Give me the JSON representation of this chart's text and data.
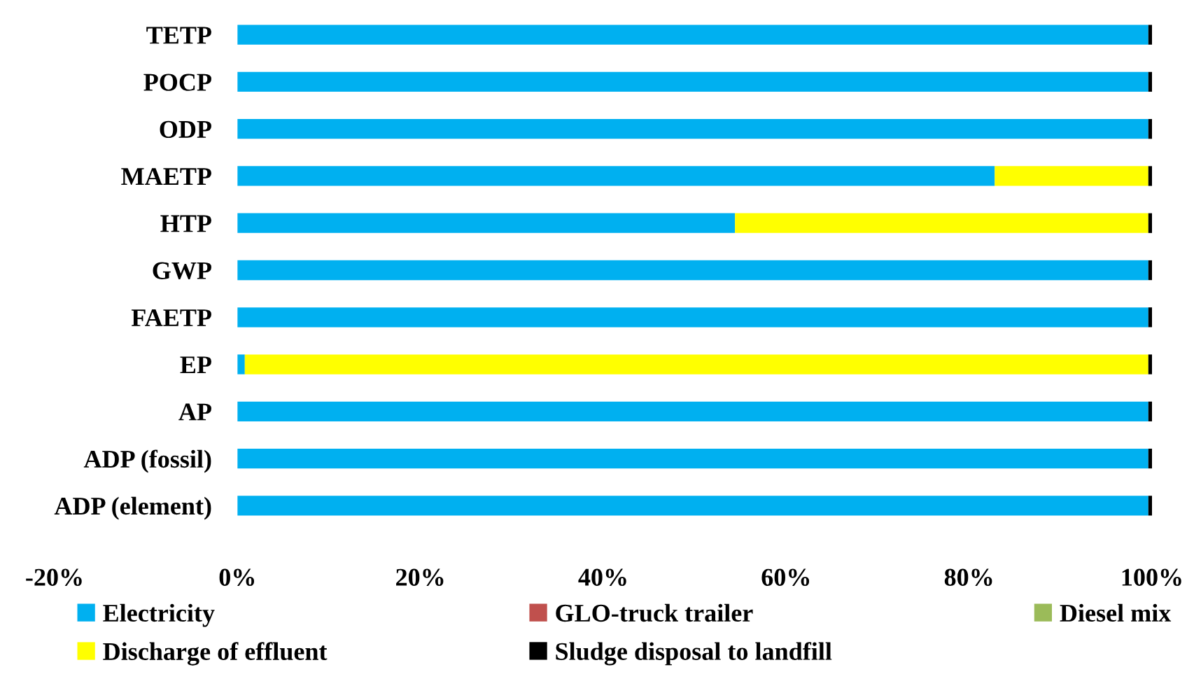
{
  "chart_data": {
    "type": "bar",
    "orientation": "horizontal",
    "stacked": true,
    "categories": [
      "TETP",
      "POCP",
      "ODP",
      "MAETP",
      "HTP",
      "GWP",
      "FAETP",
      "EP",
      "AP",
      "ADP (fossil)",
      "ADP (element)"
    ],
    "series": [
      {
        "name": "Electricity",
        "color": "#00b0f0",
        "values": [
          99.6,
          99.6,
          99.6,
          82.8,
          54.4,
          99.6,
          99.6,
          0.8,
          99.6,
          99.6,
          99.6
        ]
      },
      {
        "name": "GLO-truck trailer",
        "color": "#c0504d",
        "values": [
          0,
          0,
          0,
          0,
          0,
          0,
          0,
          0,
          0,
          0,
          0
        ]
      },
      {
        "name": "Diesel mix",
        "color": "#9bbb59",
        "values": [
          0,
          0,
          0,
          0,
          0,
          0,
          0,
          0,
          0,
          0,
          0
        ]
      },
      {
        "name": "Discharge of effluent",
        "color": "#ffff00",
        "values": [
          0,
          0,
          0,
          16.8,
          45.2,
          0,
          0,
          98.8,
          0,
          0,
          0
        ]
      },
      {
        "name": "Sludge disposal to landfill",
        "color": "#000000",
        "values": [
          0.4,
          0.4,
          0.4,
          0.4,
          0.4,
          0.4,
          0.4,
          0.4,
          0.4,
          0.4,
          0.4
        ]
      }
    ],
    "xlim": [
      -20,
      100
    ],
    "xticks": [
      {
        "value": -20,
        "label": "-20%"
      },
      {
        "value": 0,
        "label": "0%"
      },
      {
        "value": 20,
        "label": "20%"
      },
      {
        "value": 40,
        "label": "40%"
      },
      {
        "value": 60,
        "label": "60%"
      },
      {
        "value": 80,
        "label": "80%"
      },
      {
        "value": 100,
        "label": "100%"
      }
    ],
    "grid": false,
    "legend": "bottom"
  }
}
